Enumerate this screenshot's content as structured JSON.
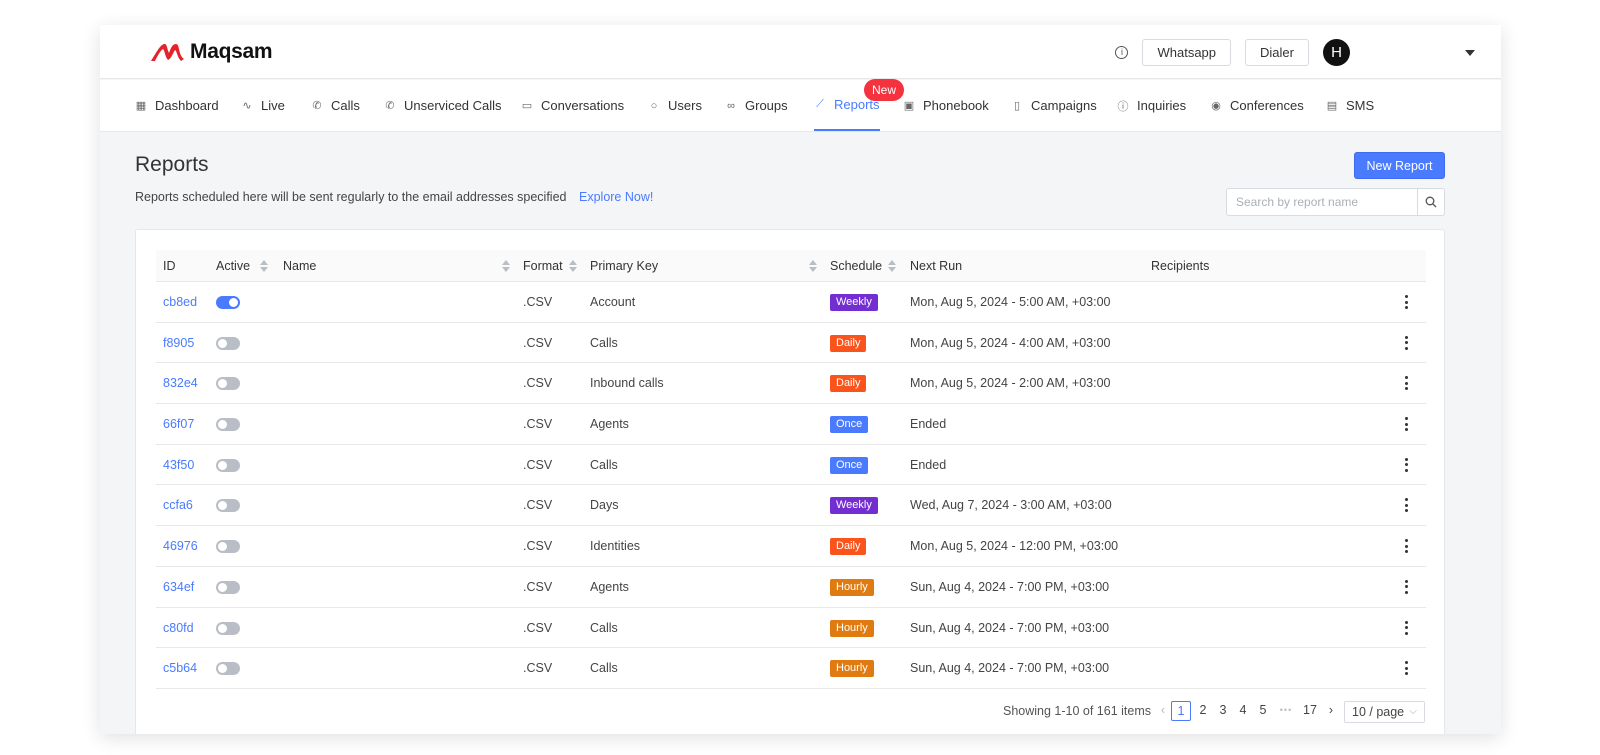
{
  "brand": {
    "name": "Maqsam",
    "accent": "#4a7bff"
  },
  "header": {
    "info_icon": "info-circle-icon",
    "buttons": [
      "Whatsapp",
      "Dialer"
    ],
    "avatar_initial": "H"
  },
  "nav": {
    "items": [
      {
        "label": "Dashboard",
        "icon": "grid-icon"
      },
      {
        "label": "Live",
        "icon": "pulse-icon"
      },
      {
        "label": "Calls",
        "icon": "phone-icon"
      },
      {
        "label": "Unserviced Calls",
        "icon": "phone-missed-icon"
      },
      {
        "label": "Conversations",
        "icon": "chat-icon"
      },
      {
        "label": "Users",
        "icon": "user-icon"
      },
      {
        "label": "Groups",
        "icon": "users-icon"
      },
      {
        "label": "Reports",
        "icon": "chart-icon"
      },
      {
        "label": "Phonebook",
        "icon": "contact-book-icon"
      },
      {
        "label": "Campaigns",
        "icon": "clipboard-icon"
      },
      {
        "label": "Inquiries",
        "icon": "info-circle-icon"
      },
      {
        "label": "Conferences",
        "icon": "broadcast-icon"
      },
      {
        "label": "SMS",
        "icon": "message-icon"
      }
    ],
    "active": "Reports",
    "new_badge": "New"
  },
  "page": {
    "title": "Reports",
    "subtitle": "Reports scheduled here will be sent regularly to the email addresses specified",
    "explore_link": "Explore Now!",
    "new_report_button": "New Report",
    "search_placeholder": "Search by report name"
  },
  "table": {
    "columns": {
      "id": "ID",
      "active": "Active",
      "name": "Name",
      "format": "Format",
      "primary_key": "Primary Key",
      "schedule": "Schedule",
      "next_run": "Next Run",
      "recipients": "Recipients"
    },
    "schedule_colors": {
      "Weekly": "#722ed1",
      "Daily": "#fa541c",
      "Once": "#4a7bff",
      "Hourly": "#e07b12"
    },
    "rows": [
      {
        "id": "cb8ed",
        "active": true,
        "name": "",
        "format": ".CSV",
        "primary_key": "Account",
        "schedule": "Weekly",
        "next_run": "Mon, Aug 5, 2024 - 5:00 AM, +03:00",
        "recipients": ""
      },
      {
        "id": "f8905",
        "active": false,
        "name": "",
        "format": ".CSV",
        "primary_key": "Calls",
        "schedule": "Daily",
        "next_run": "Mon, Aug 5, 2024 - 4:00 AM, +03:00",
        "recipients": ""
      },
      {
        "id": "832e4",
        "active": false,
        "name": "",
        "format": ".CSV",
        "primary_key": "Inbound calls",
        "schedule": "Daily",
        "next_run": "Mon, Aug 5, 2024 - 2:00 AM, +03:00",
        "recipients": ""
      },
      {
        "id": "66f07",
        "active": false,
        "name": "",
        "format": ".CSV",
        "primary_key": "Agents",
        "schedule": "Once",
        "next_run": "Ended",
        "recipients": ""
      },
      {
        "id": "43f50",
        "active": false,
        "name": "",
        "format": ".CSV",
        "primary_key": "Calls",
        "schedule": "Once",
        "next_run": "Ended",
        "recipients": ""
      },
      {
        "id": "ccfa6",
        "active": false,
        "name": "",
        "format": ".CSV",
        "primary_key": "Days",
        "schedule": "Weekly",
        "next_run": "Wed, Aug 7, 2024 - 3:00 AM, +03:00",
        "recipients": ""
      },
      {
        "id": "46976",
        "active": false,
        "name": "",
        "format": ".CSV",
        "primary_key": "Identities",
        "schedule": "Daily",
        "next_run": "Mon, Aug 5, 2024 - 12:00 PM, +03:00",
        "recipients": ""
      },
      {
        "id": "634ef",
        "active": false,
        "name": "",
        "format": ".CSV",
        "primary_key": "Agents",
        "schedule": "Hourly",
        "next_run": "Sun, Aug 4, 2024 - 7:00 PM, +03:00",
        "recipients": ""
      },
      {
        "id": "c80fd",
        "active": false,
        "name": "",
        "format": ".CSV",
        "primary_key": "Calls",
        "schedule": "Hourly",
        "next_run": "Sun, Aug 4, 2024 - 7:00 PM, +03:00",
        "recipients": ""
      },
      {
        "id": "c5b64",
        "active": false,
        "name": "",
        "format": ".CSV",
        "primary_key": "Calls",
        "schedule": "Hourly",
        "next_run": "Sun, Aug 4, 2024 - 7:00 PM, +03:00",
        "recipients": ""
      }
    ]
  },
  "pagination": {
    "summary": "Showing 1-10 of 161 items",
    "pages": [
      "1",
      "2",
      "3",
      "4",
      "5"
    ],
    "ellipsis": "•••",
    "last": "17",
    "current": "1",
    "page_size": "10 / page"
  }
}
